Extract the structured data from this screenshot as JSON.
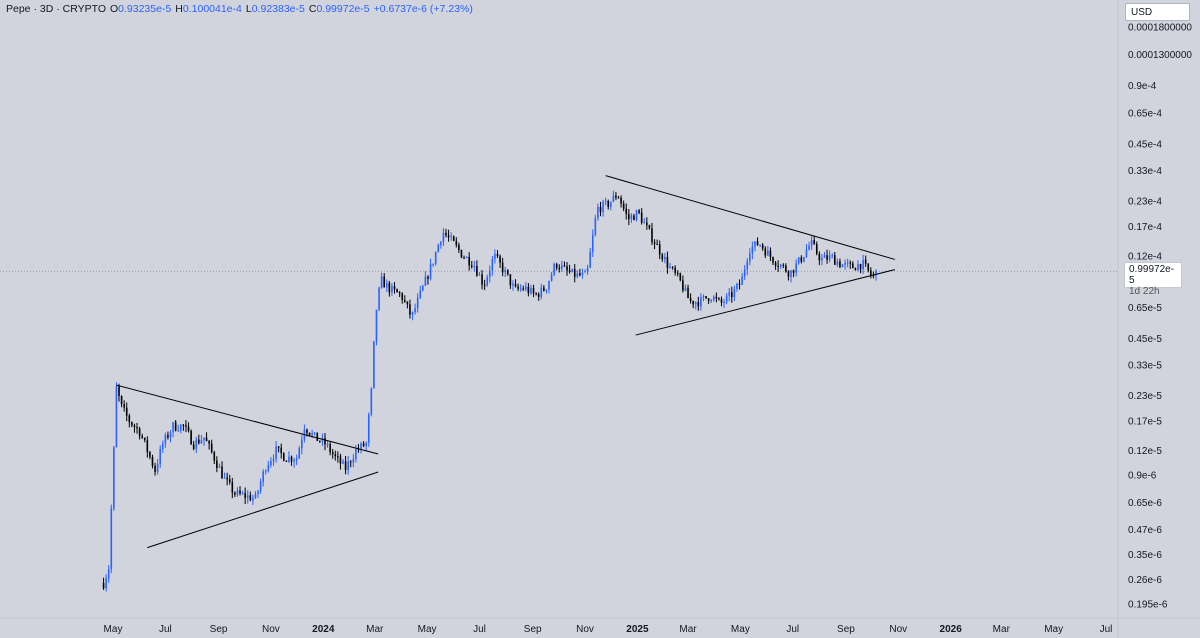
{
  "header": {
    "symbol": "Pepe · 3D · CRYPTO",
    "o_label": "O",
    "o_value": "0.93235e-5",
    "h_label": "H",
    "h_value": "0.100041e-4",
    "l_label": "L",
    "l_value": "0.92383e-5",
    "c_label": "C",
    "c_value": "0.99972e-5",
    "change": "+0.6737e-6 (+7.23%)"
  },
  "currency": "USD",
  "price_badge": {
    "price": "0.99972e-5",
    "countdown": "1d 22h"
  },
  "colors": {
    "up": "#2962ff",
    "down": "#000000",
    "background": "#d1d4dc",
    "trendline": "#000000"
  },
  "chart_data": {
    "type": "line",
    "scale": "log",
    "y_tick_labels": [
      "0.0001800000",
      "0.0001300000",
      "0.9e-4",
      "0.65e-4",
      "0.45e-4",
      "0.33e-4",
      "0.23e-4",
      "0.17e-4",
      "0.12e-4",
      "0.9e-5",
      "0.65e-5",
      "0.45e-5",
      "0.33e-5",
      "0.23e-5",
      "0.17e-5",
      "0.12e-5",
      "0.9e-6",
      "0.65e-6",
      "0.47e-6",
      "0.35e-6",
      "0.26e-6",
      "0.195e-6"
    ],
    "y_tick_values": [
      0.00018,
      0.00013,
      9e-05,
      6.5e-05,
      4.5e-05,
      3.3e-05,
      2.3e-05,
      1.7e-05,
      1.2e-05,
      9e-06,
      6.5e-06,
      4.5e-06,
      3.3e-06,
      2.3e-06,
      1.7e-06,
      1.2e-06,
      9e-07,
      6.5e-07,
      4.7e-07,
      3.5e-07,
      2.6e-07,
      1.95e-07
    ],
    "x_tick_labels": [
      "May",
      "Jul",
      "Sep",
      "Nov",
      "2024",
      "Mar",
      "May",
      "Jul",
      "Sep",
      "Nov",
      "2025",
      "Mar",
      "May",
      "Jul",
      "Sep",
      "Nov",
      "2026",
      "Mar",
      "May",
      "Jul"
    ],
    "x_tick_dates": [
      "2023-05-01",
      "2023-07-01",
      "2023-09-01",
      "2023-11-01",
      "2024-01-01",
      "2024-03-01",
      "2024-05-01",
      "2024-07-01",
      "2024-09-01",
      "2024-11-01",
      "2025-01-01",
      "2025-03-01",
      "2025-05-01",
      "2025-07-01",
      "2025-09-01",
      "2025-11-01",
      "2026-01-01",
      "2026-03-01",
      "2026-05-01",
      "2026-07-01"
    ],
    "last_price": 9.9972e-06,
    "series": [
      {
        "values": [
          [
            "2023-04-20",
            2.5e-07
          ],
          [
            "2023-04-26",
            3e-07
          ],
          [
            "2023-05-02",
            1.2e-06
          ],
          [
            "2023-05-05",
            2.5e-06
          ],
          [
            "2023-05-11",
            2e-06
          ],
          [
            "2023-05-20",
            1.7e-06
          ],
          [
            "2023-06-01",
            1.5e-06
          ],
          [
            "2023-06-10",
            1.2e-06
          ],
          [
            "2023-06-19",
            9.5e-07
          ],
          [
            "2023-06-28",
            1.3e-06
          ],
          [
            "2023-07-10",
            1.6e-06
          ],
          [
            "2023-07-22",
            1.6e-06
          ],
          [
            "2023-08-03",
            1.3e-06
          ],
          [
            "2023-08-15",
            1.4e-06
          ],
          [
            "2023-08-27",
            1.1e-06
          ],
          [
            "2023-09-08",
            8.5e-07
          ],
          [
            "2023-09-20",
            7.2e-07
          ],
          [
            "2023-10-02",
            7e-07
          ],
          [
            "2023-10-14",
            6.8e-07
          ],
          [
            "2023-10-26",
            1e-06
          ],
          [
            "2023-11-07",
            1.2e-06
          ],
          [
            "2023-11-19",
            1.1e-06
          ],
          [
            "2023-12-01",
            1.1e-06
          ],
          [
            "2023-12-10",
            1.6e-06
          ],
          [
            "2023-12-22",
            1.4e-06
          ],
          [
            "2024-01-03",
            1.3e-06
          ],
          [
            "2024-01-15",
            1.1e-06
          ],
          [
            "2024-01-27",
            9.7e-07
          ],
          [
            "2024-02-08",
            1.2e-06
          ],
          [
            "2024-02-20",
            1.3e-06
          ],
          [
            "2024-02-26",
            2.4e-06
          ],
          [
            "2024-03-02",
            6e-06
          ],
          [
            "2024-03-08",
            9e-06
          ],
          [
            "2024-03-20",
            8e-06
          ],
          [
            "2024-04-01",
            7.5e-06
          ],
          [
            "2024-04-13",
            5.8e-06
          ],
          [
            "2024-04-25",
            8e-06
          ],
          [
            "2024-05-07",
            1.1e-05
          ],
          [
            "2024-05-19",
            1.6e-05
          ],
          [
            "2024-05-31",
            1.4e-05
          ],
          [
            "2024-06-12",
            1.2e-05
          ],
          [
            "2024-06-24",
            1.1e-05
          ],
          [
            "2024-07-06",
            8.5e-06
          ],
          [
            "2024-07-18",
            1.2e-05
          ],
          [
            "2024-07-30",
            1e-05
          ],
          [
            "2024-08-11",
            8e-06
          ],
          [
            "2024-08-23",
            8.2e-06
          ],
          [
            "2024-09-04",
            7.5e-06
          ],
          [
            "2024-09-16",
            8.2e-06
          ],
          [
            "2024-09-28",
            1.1e-05
          ],
          [
            "2024-10-10",
            1e-05
          ],
          [
            "2024-10-22",
            9.5e-06
          ],
          [
            "2024-11-03",
            9.5e-06
          ],
          [
            "2024-11-09",
            1.4e-05
          ],
          [
            "2024-11-15",
            2.1e-05
          ],
          [
            "2024-11-27",
            2.2e-05
          ],
          [
            "2024-12-09",
            2.5e-05
          ],
          [
            "2024-12-21",
            1.85e-05
          ],
          [
            "2025-01-02",
            2e-05
          ],
          [
            "2025-01-14",
            1.6e-05
          ],
          [
            "2025-01-26",
            1.3e-05
          ],
          [
            "2025-02-07",
            1.05e-05
          ],
          [
            "2025-02-19",
            9e-06
          ],
          [
            "2025-03-03",
            7e-06
          ],
          [
            "2025-03-15",
            7e-06
          ],
          [
            "2025-03-27",
            7.5e-06
          ],
          [
            "2025-04-08",
            6.8e-06
          ],
          [
            "2025-04-20",
            7.5e-06
          ],
          [
            "2025-05-02",
            8.8e-06
          ],
          [
            "2025-05-11",
            1.3e-05
          ],
          [
            "2025-05-23",
            1.4e-05
          ],
          [
            "2025-06-04",
            1.2e-05
          ],
          [
            "2025-06-16",
            1.08e-05
          ],
          [
            "2025-06-28",
            9.8e-06
          ],
          [
            "2025-07-10",
            1.15e-05
          ],
          [
            "2025-07-22",
            1.4e-05
          ],
          [
            "2025-08-03",
            1.15e-05
          ],
          [
            "2025-08-15",
            1.18e-05
          ],
          [
            "2025-08-27",
            1.08e-05
          ],
          [
            "2025-09-08",
            1.05e-05
          ],
          [
            "2025-09-20",
            1.1e-05
          ],
          [
            "2025-10-02",
            9.3e-06
          ],
          [
            "2025-10-08",
            9.9972e-06
          ]
        ]
      }
    ],
    "trendlines": [
      {
        "start": [
          "2023-05-05",
          2.6e-06
        ],
        "end": [
          "2024-03-05",
          1.15e-06
        ]
      },
      {
        "start": [
          "2023-06-10",
          3.8e-07
        ],
        "end": [
          "2024-03-05",
          9.3e-07
        ]
      },
      {
        "start": [
          "2024-11-25",
          3.1e-05
        ],
        "end": [
          "2025-10-28",
          1.15e-05
        ]
      },
      {
        "start": [
          "2024-12-30",
          4.7e-06
        ],
        "end": [
          "2025-10-28",
          1.02e-05
        ]
      }
    ]
  }
}
